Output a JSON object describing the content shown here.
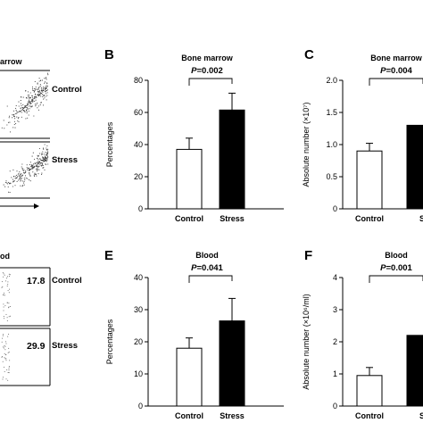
{
  "flow_panels": {
    "top": {
      "title_fragment": "arrow",
      "rows": [
        {
          "label": "Control",
          "value": ""
        },
        {
          "label": "Stress",
          "value": ""
        }
      ]
    },
    "bottom": {
      "title_fragment": "od",
      "rows": [
        {
          "label": "Control",
          "value": "17.8"
        },
        {
          "label": "Stress",
          "value": "29.9"
        }
      ]
    }
  },
  "chart_data": [
    {
      "panel": "B",
      "type": "bar",
      "title": "Bone marrow",
      "p_value": "=0.002",
      "p_prefix": "P",
      "categories": [
        "Control",
        "Stress"
      ],
      "values": [
        37,
        61.5
      ],
      "errors": [
        7,
        10.5
      ],
      "bar_colors": [
        "#ffffff",
        "#000000"
      ],
      "ylabel": "Percentages",
      "ylim": [
        0,
        80
      ],
      "yticks": [
        "0",
        "20",
        "40",
        "60",
        "80"
      ]
    },
    {
      "panel": "C",
      "type": "bar",
      "title": "Bone marrow",
      "p_value": "=0.004",
      "p_prefix": "P",
      "categories": [
        "Control",
        "S"
      ],
      "values": [
        0.9,
        1.3
      ],
      "errors": [
        0.12,
        0
      ],
      "bar_colors": [
        "#ffffff",
        "#000000"
      ],
      "ylabel": "Absolute number (×10⁷)",
      "ylim": [
        0,
        2.0
      ],
      "yticks": [
        "0",
        "0.5",
        "1.0",
        "1.5",
        "2.0"
      ]
    },
    {
      "panel": "E",
      "type": "bar",
      "title": "Blood",
      "p_value": "=0.041",
      "p_prefix": "P",
      "categories": [
        "Control",
        "Stress"
      ],
      "values": [
        18,
        26.5
      ],
      "errors": [
        3.2,
        7
      ],
      "bar_colors": [
        "#ffffff",
        "#000000"
      ],
      "ylabel": "Percentages",
      "ylim": [
        0,
        40
      ],
      "yticks": [
        "0",
        "10",
        "20",
        "30",
        "40"
      ]
    },
    {
      "panel": "F",
      "type": "bar",
      "title": "Blood",
      "p_value": "=0.001",
      "p_prefix": "P",
      "categories": [
        "Control",
        "S"
      ],
      "values": [
        0.95,
        2.2
      ],
      "errors": [
        0.25,
        0
      ],
      "bar_colors": [
        "#ffffff",
        "#000000"
      ],
      "ylabel": "Absolute number (×10⁶/ml)",
      "ylim": [
        0,
        4
      ],
      "yticks": [
        "0",
        "1",
        "2",
        "3",
        "4"
      ]
    }
  ]
}
